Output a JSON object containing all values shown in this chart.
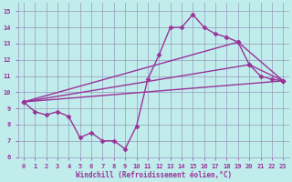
{
  "background_color": "#c0ecec",
  "grid_color": "#9999bb",
  "line_color": "#993399",
  "xlabel": "Windchill (Refroidissement éolien,°C)",
  "xlim": [
    -0.5,
    23.5
  ],
  "ylim": [
    6,
    15.5
  ],
  "xticks": [
    0,
    1,
    2,
    3,
    4,
    5,
    6,
    7,
    8,
    9,
    10,
    11,
    12,
    13,
    14,
    15,
    16,
    17,
    18,
    19,
    20,
    21,
    22,
    23
  ],
  "yticks": [
    6,
    7,
    8,
    9,
    10,
    11,
    12,
    13,
    14,
    15
  ],
  "line1_x": [
    0,
    1,
    2,
    3,
    4,
    5,
    6,
    7,
    8,
    9,
    10,
    11,
    12,
    13,
    14,
    15,
    16,
    17,
    18,
    19,
    20,
    21,
    22,
    23
  ],
  "line1_y": [
    9.4,
    8.8,
    8.6,
    8.8,
    8.5,
    7.2,
    7.5,
    7.0,
    7.0,
    6.5,
    7.9,
    10.8,
    12.3,
    14.0,
    14.0,
    14.8,
    14.0,
    13.6,
    13.4,
    13.1,
    11.7,
    11.0,
    10.8,
    10.7
  ],
  "line2_x": [
    0,
    23
  ],
  "line2_y": [
    9.4,
    10.7
  ],
  "line3_x": [
    0,
    20,
    23
  ],
  "line3_y": [
    9.4,
    11.7,
    10.7
  ],
  "line4_x": [
    0,
    19,
    23
  ],
  "line4_y": [
    9.4,
    13.1,
    10.7
  ],
  "marker": "D",
  "markersize": 2.5,
  "linewidth": 1.0
}
